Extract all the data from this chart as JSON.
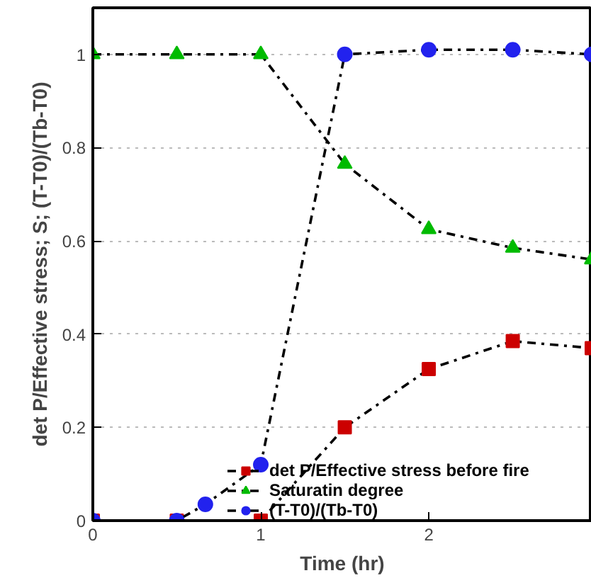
{
  "chart_data": {
    "type": "line",
    "xlabel": "Time (hr)",
    "ylabel": "det P/Effective stress; S; (T-T0)/(Tb-T0)",
    "xlim": [
      0,
      2.97
    ],
    "ylim": [
      0,
      1.1
    ],
    "xticks": [
      0,
      1,
      2
    ],
    "yticks": [
      0,
      0.2,
      0.4,
      0.6,
      0.8,
      1
    ],
    "grid": "y",
    "legend": "bottom",
    "line_style": "dashdot",
    "series": [
      {
        "name": "det P/Effective stress before fire",
        "color": "#cc0000",
        "marker": "square",
        "x": [
          0,
          0.5,
          1,
          1.5,
          2,
          2.5,
          2.97
        ],
        "values": [
          0,
          0,
          0,
          0.2,
          0.325,
          0.385,
          0.37
        ]
      },
      {
        "name": "Saturatin degree",
        "color": "#00bb00",
        "marker": "triangle",
        "x": [
          0,
          0.5,
          1,
          1.5,
          2,
          2.5,
          2.97
        ],
        "values": [
          1,
          1,
          1,
          0.765,
          0.625,
          0.585,
          0.56
        ]
      },
      {
        "name": "(T-T0)/(Tb-T0)",
        "color": "#2222ee",
        "marker": "circle",
        "x": [
          0,
          0.5,
          0.67,
          1,
          1.5,
          2,
          2.5,
          2.97
        ],
        "values": [
          0,
          0,
          0.035,
          0.12,
          1,
          1.01,
          1.01,
          1.0
        ]
      }
    ]
  }
}
